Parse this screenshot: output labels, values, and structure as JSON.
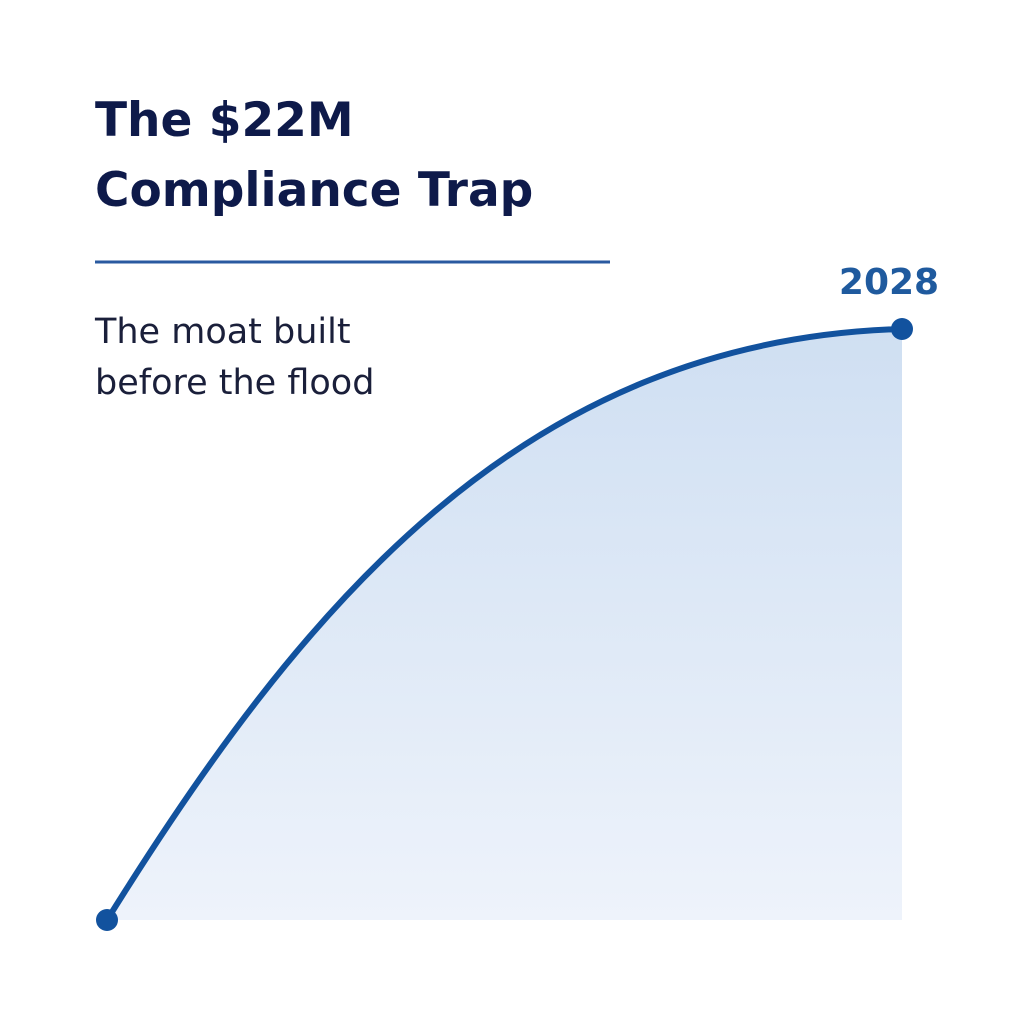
{
  "header": {
    "title_lines": [
      "The $22M",
      "Compliance Trap"
    ],
    "subtitle_lines": [
      "The moat built",
      "before the flood"
    ]
  },
  "graphic": {
    "end_label": "2028"
  }
}
